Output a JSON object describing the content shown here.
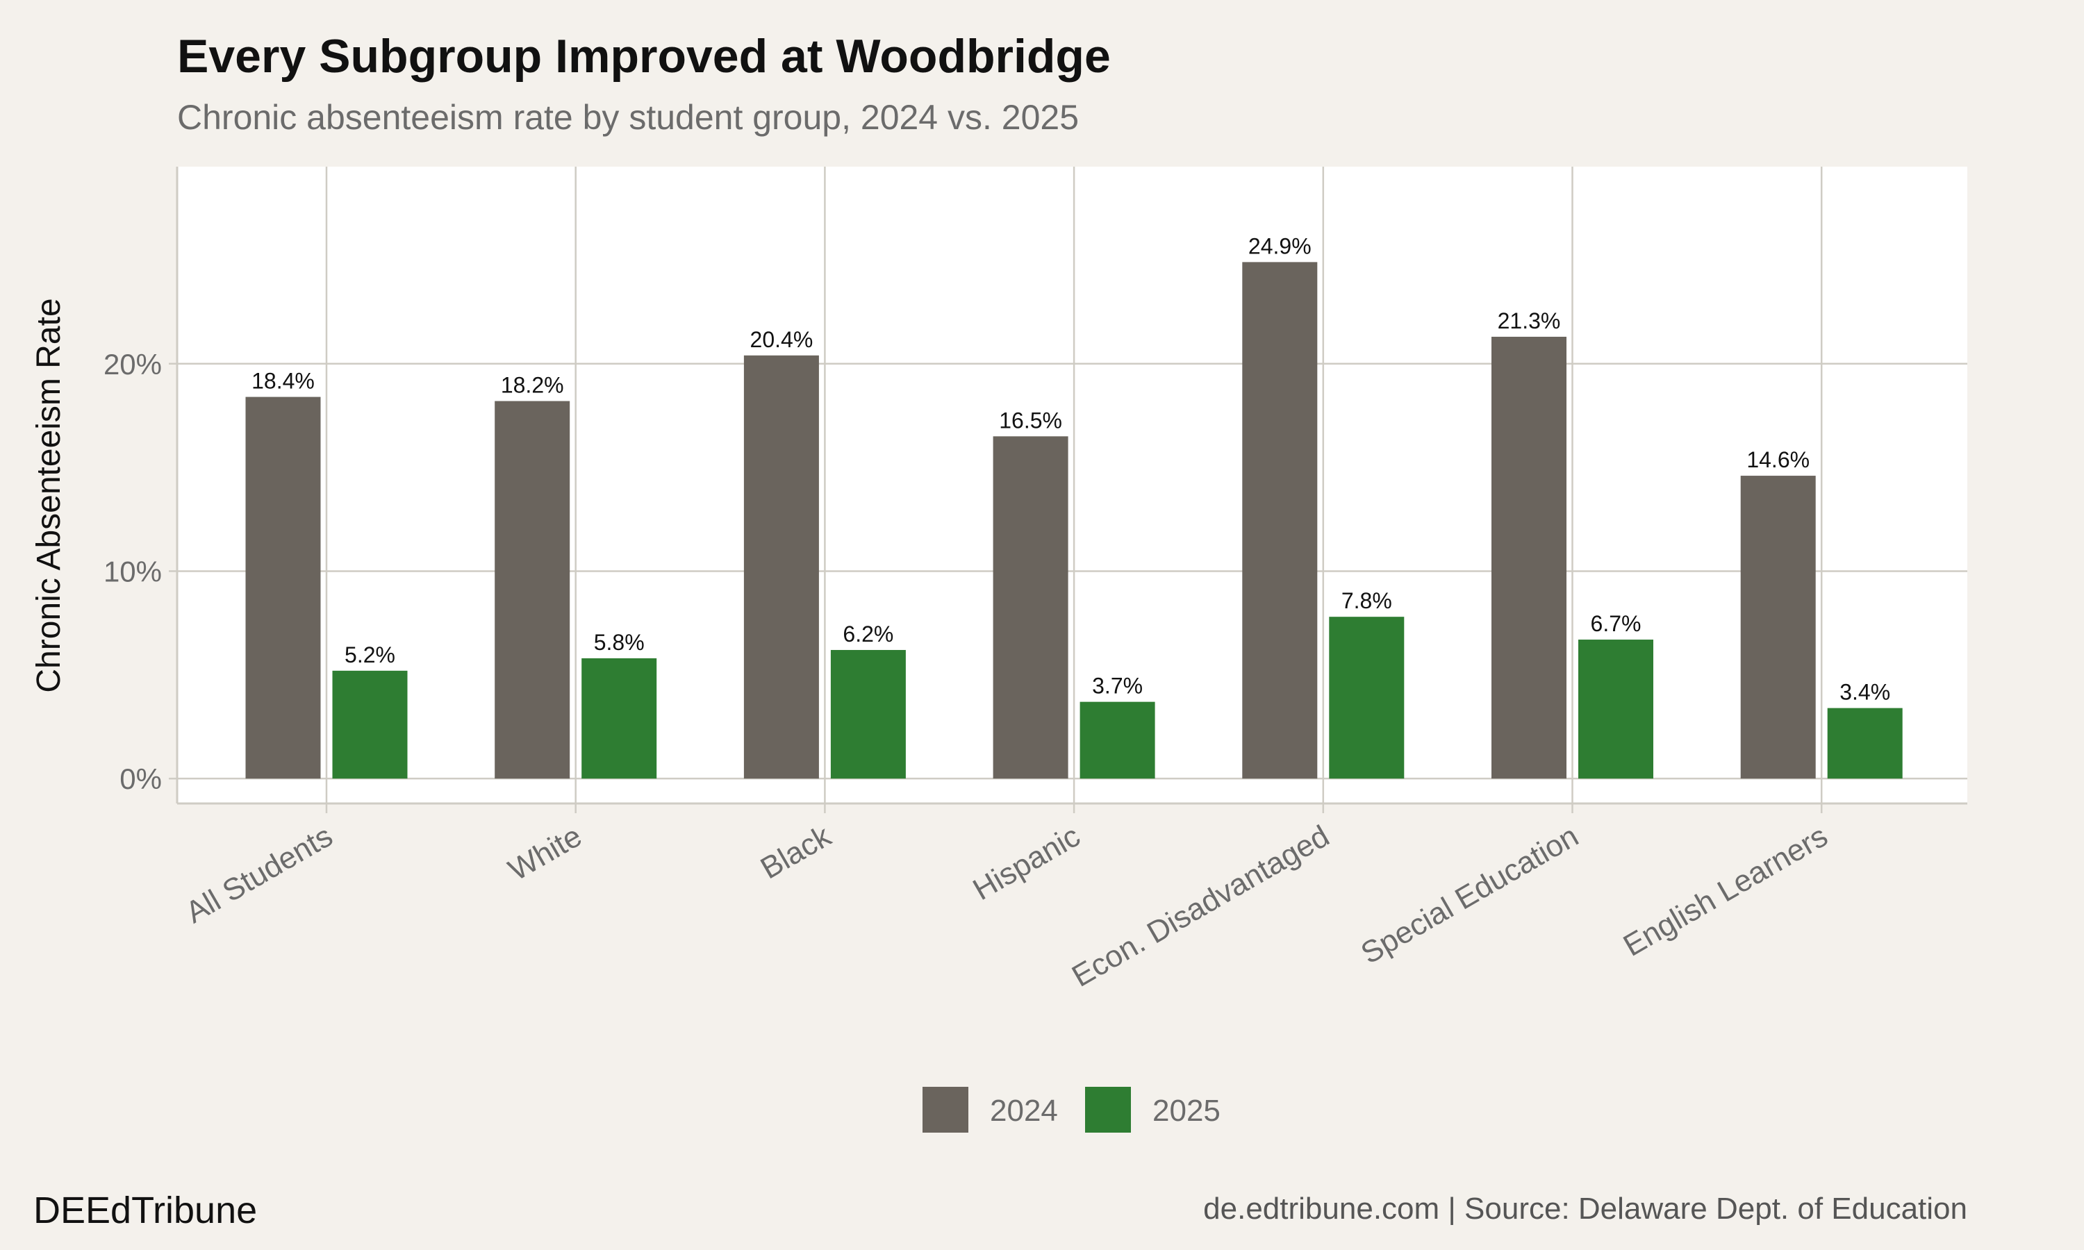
{
  "title": "Every Subgroup Improved at Woodbridge",
  "subtitle": "Chronic absenteeism rate by student group, 2024 vs. 2025",
  "brand": "DEEdTribune",
  "footer_source": "de.edtribune.com | Source: Delaware Dept. of Education",
  "colors": {
    "background": "#f4f1ec",
    "panel": "#ffffff",
    "grid": "#cfccc4",
    "series_2024": "#6a645d",
    "series_2025": "#2e7d32"
  },
  "chart_data": {
    "type": "bar",
    "categories": [
      "All Students",
      "White",
      "Black",
      "Hispanic",
      "Econ. Disadvantaged",
      "Special Education",
      "English Learners"
    ],
    "series": [
      {
        "name": "2024",
        "values": [
          18.4,
          18.2,
          20.4,
          16.5,
          24.9,
          21.3,
          14.6
        ],
        "labels": [
          "18.4%",
          "18.2%",
          "20.4%",
          "16.5%",
          "24.9%",
          "21.3%",
          "14.6%"
        ]
      },
      {
        "name": "2025",
        "values": [
          5.2,
          5.8,
          6.2,
          3.7,
          7.8,
          6.7,
          3.4
        ],
        "labels": [
          "5.2%",
          "5.8%",
          "6.2%",
          "3.7%",
          "7.8%",
          "6.7%",
          "3.4%"
        ]
      }
    ],
    "ylabel": "Chronic Absenteeism Rate",
    "xlabel": "",
    "ylim": [
      -1.2,
      29.5
    ],
    "yticks": [
      0,
      10,
      20
    ],
    "ytick_labels": [
      "0%",
      "10%",
      "20%"
    ],
    "grid": true,
    "legend_position": "bottom"
  }
}
